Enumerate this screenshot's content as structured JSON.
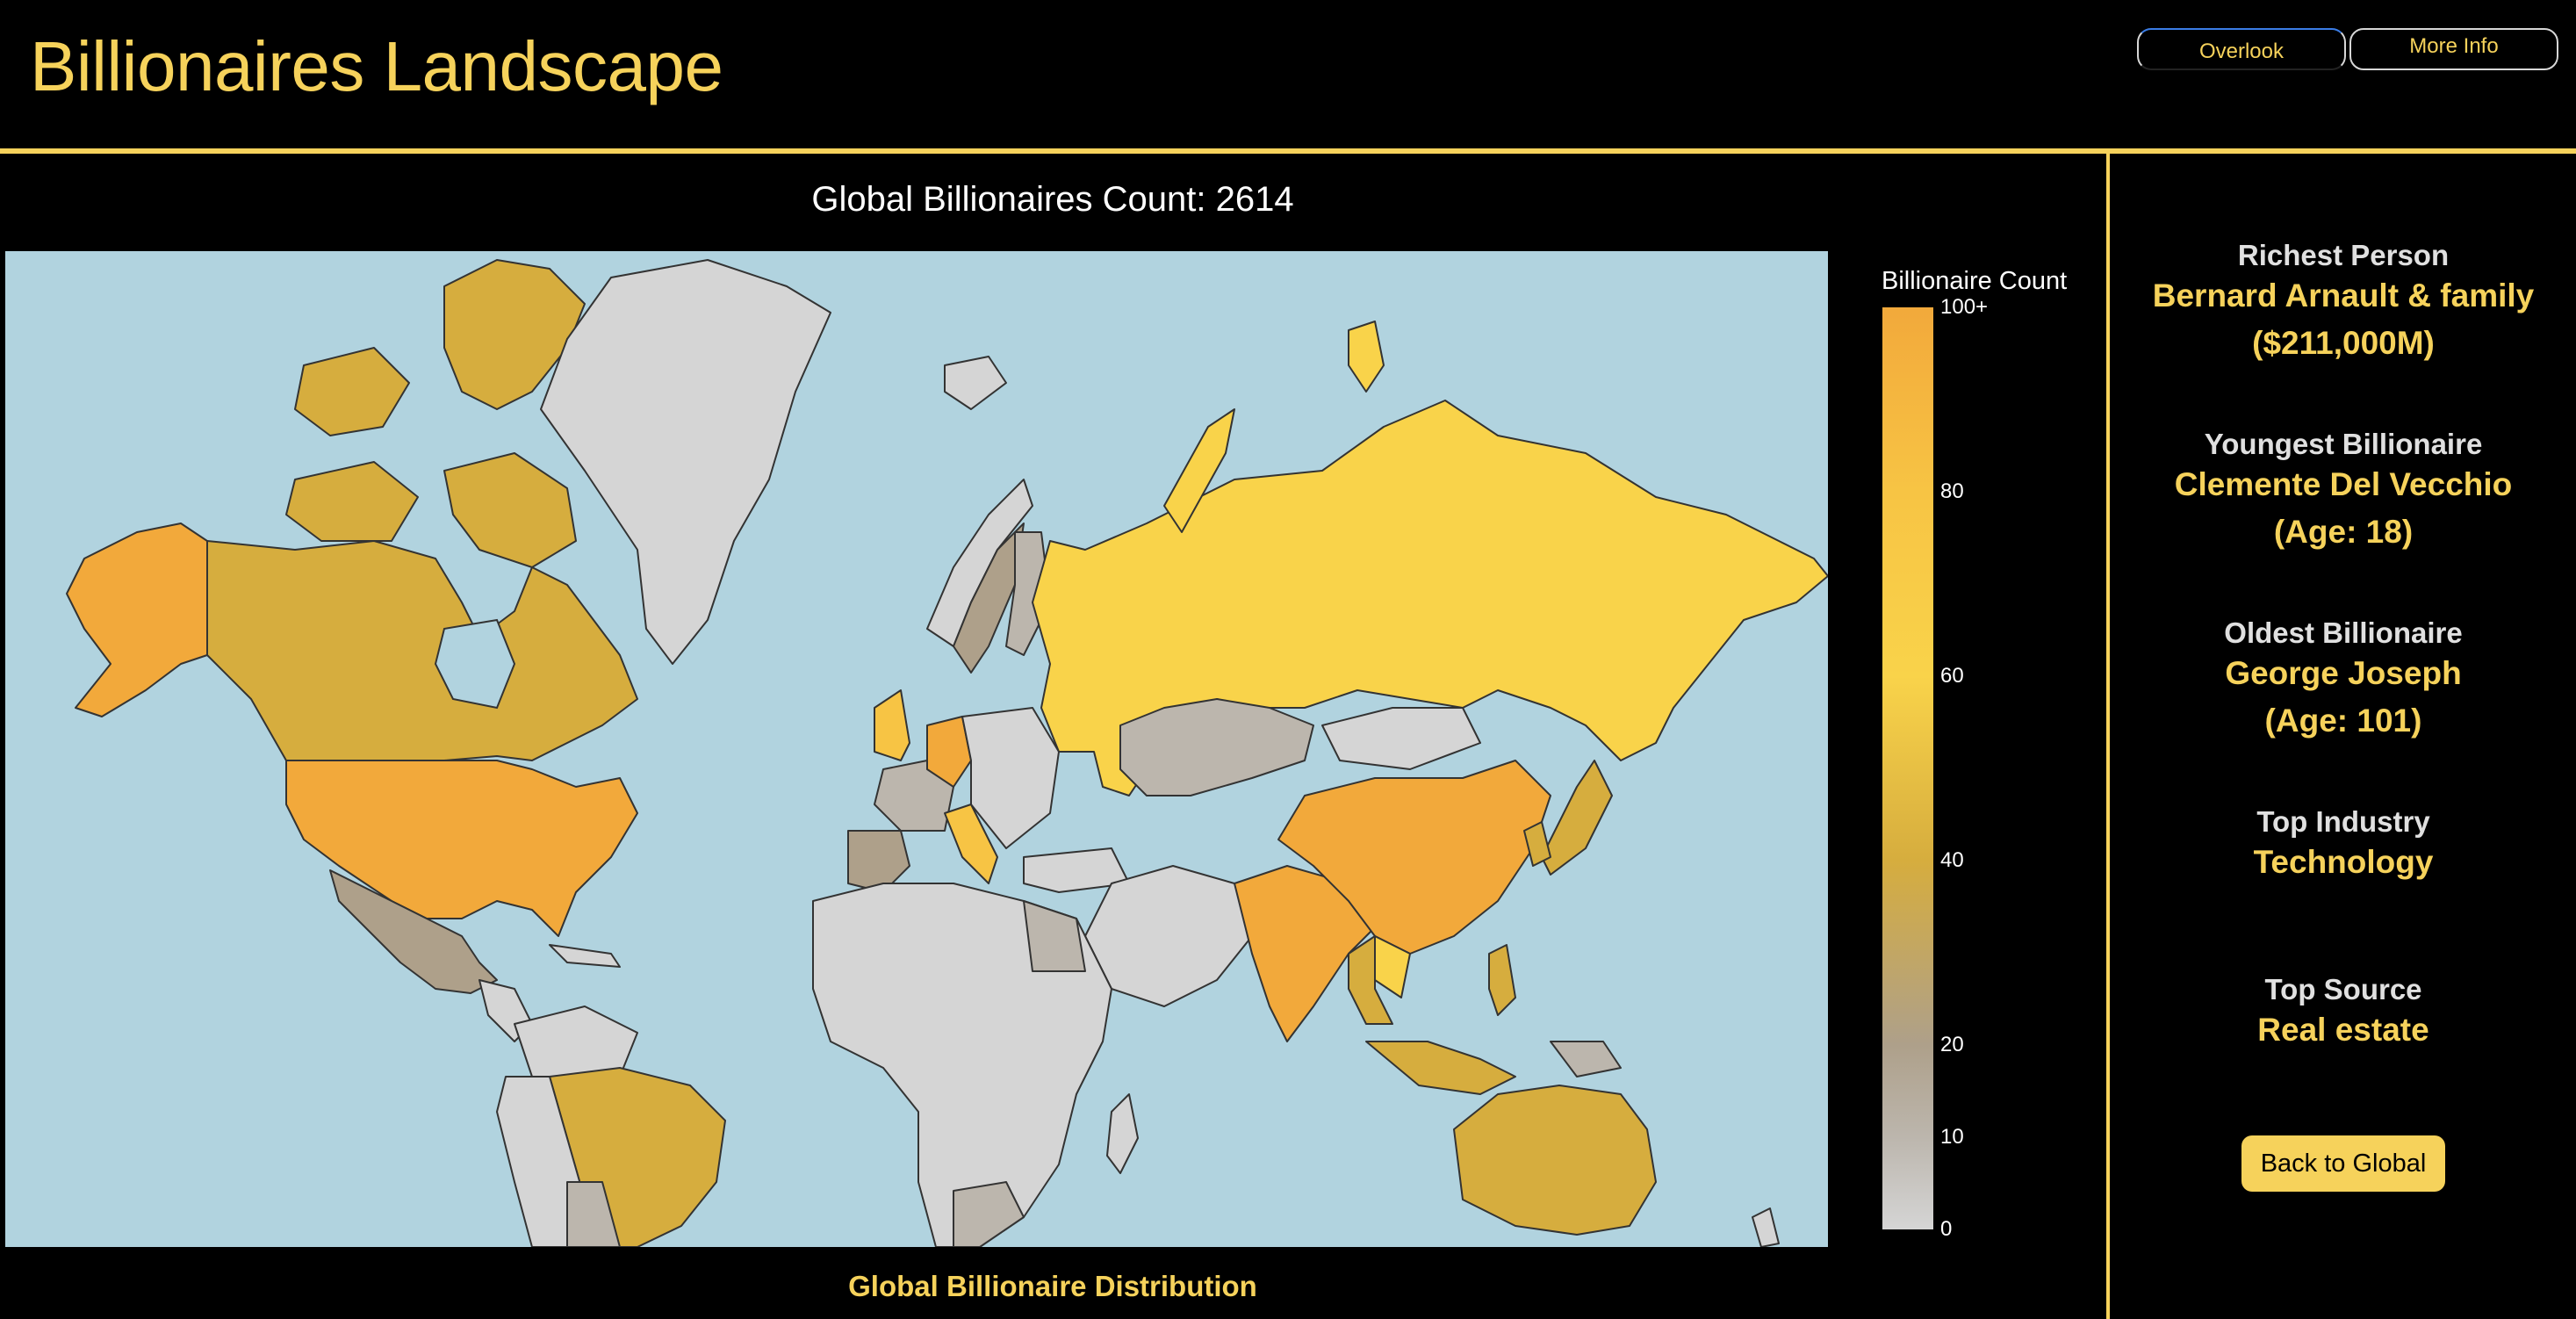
{
  "header": {
    "title": "Billionaires Landscape",
    "nav": {
      "overlook": "Overlook",
      "more_info": "More Info"
    }
  },
  "map": {
    "heading": "Global Billionaires Count: 2614",
    "caption": "Global Billionaire Distribution",
    "ocean_color": "#b1d3df",
    "legend": {
      "title": "Billionaire Count",
      "ticks": [
        "100+",
        "80",
        "60",
        "40",
        "20",
        "10",
        "0"
      ],
      "colorscale": [
        "#f2a93b",
        "#f7c444",
        "#f9d34a",
        "#d6ad3e",
        "#aea08a",
        "#bcb6ad",
        "#d5d5d5"
      ]
    }
  },
  "stats": {
    "richest": {
      "label": "Richest Person",
      "name": "Bernard Arnault & family",
      "detail": "($211,000M)"
    },
    "youngest": {
      "label": "Youngest Billionaire",
      "name": "Clemente Del Vecchio",
      "detail": "(Age: 18)"
    },
    "oldest": {
      "label": "Oldest Billionaire",
      "name": "George Joseph",
      "detail": "(Age: 101)"
    },
    "industry": {
      "label": "Top Industry",
      "value": "Technology"
    },
    "source": {
      "label": "Top Source",
      "value": "Real estate"
    }
  },
  "back_button": "Back to Global"
}
